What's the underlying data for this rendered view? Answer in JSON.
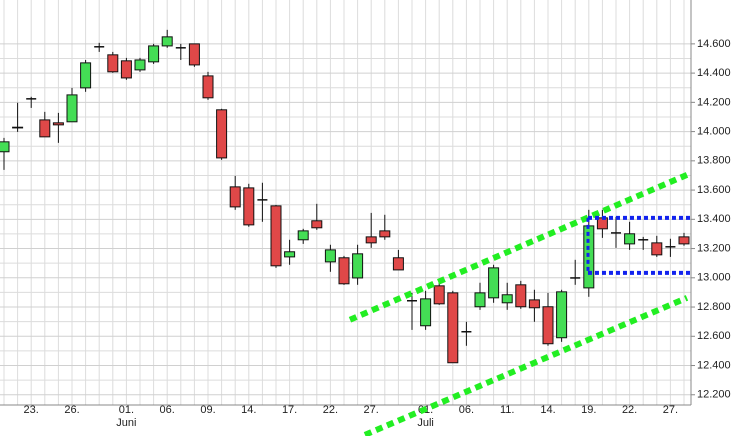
{
  "chart_data": {
    "type": "candlestick",
    "categories": [
      null,
      null,
      "23.",
      null,
      null,
      "26.",
      null,
      null,
      null,
      "01.",
      null,
      null,
      "06.",
      null,
      null,
      "09.",
      null,
      null,
      "14.",
      null,
      null,
      "17.",
      null,
      null,
      "22.",
      null,
      null,
      "27.",
      null,
      null,
      null,
      "01.",
      null,
      null,
      "06.",
      null,
      null,
      "11.",
      null,
      null,
      "14.",
      null,
      null,
      "19.",
      null,
      null,
      "22.",
      null,
      null,
      "27.",
      null
    ],
    "month_labels": [
      {
        "index": 9,
        "label": "Juni"
      },
      {
        "index": 31,
        "label": "Juli"
      }
    ],
    "open": [
      13862,
      14025,
      14224,
      14080,
      14060,
      14067,
      14299,
      14580,
      14525,
      14484,
      14422,
      14477,
      14586,
      14573,
      14600,
      14381,
      14149,
      13622,
      13615,
      13533,
      13492,
      13143,
      13260,
      13390,
      13109,
      13137,
      12999,
      13280,
      13321,
      13137,
      12843,
      12672,
      12945,
      12897,
      12631,
      12802,
      12863,
      12829,
      12952,
      12849,
      12802,
      12590,
      12999,
      12931,
      13410,
      13307,
      13232,
      13260,
      13239,
      13212,
      13280
    ],
    "high": [
      13957,
      14197,
      14238,
      14135,
      14128,
      14299,
      14490,
      14607,
      14545,
      14504,
      14504,
      14600,
      14696,
      14600,
      14600,
      14408,
      14156,
      13697,
      13643,
      13650,
      13499,
      13260,
      13335,
      13506,
      13226,
      13150,
      13226,
      13444,
      13431,
      13191,
      12897,
      12911,
      12973,
      12911,
      12699,
      12966,
      13089,
      12966,
      12979,
      12918,
      12897,
      12918,
      13123,
      13465,
      13465,
      13417,
      13383,
      13280,
      13287,
      13267,
      13307
    ],
    "low": [
      13738,
      13998,
      14162,
      13964,
      13923,
      14067,
      14272,
      14545,
      14402,
      14354,
      14408,
      14463,
      14573,
      14490,
      14443,
      14217,
      13807,
      13465,
      13349,
      13383,
      13068,
      13089,
      13232,
      13328,
      13041,
      12952,
      12952,
      13205,
      13260,
      13054,
      12644,
      12644,
      12815,
      12419,
      12535,
      12781,
      12829,
      12781,
      12788,
      12699,
      12535,
      12562,
      12952,
      12870,
      13273,
      13205,
      13191,
      13191,
      13143,
      13143,
      13219
    ],
    "close": [
      13930,
      14030,
      14224,
      13964,
      14046,
      14251,
      14470,
      14580,
      14409,
      14367,
      14490,
      14586,
      14648,
      14573,
      14456,
      14231,
      13820,
      13485,
      13362,
      13533,
      13082,
      13178,
      13321,
      13342,
      13191,
      12959,
      13164,
      13239,
      13280,
      13054,
      12843,
      12856,
      12822,
      12419,
      12631,
      12897,
      13068,
      12884,
      12802,
      12795,
      12549,
      12904,
      12999,
      13355,
      13335,
      13307,
      13301,
      13260,
      13157,
      13212,
      13232
    ],
    "up_color": "#44dd55",
    "down_color": "#e04848",
    "ylim": [
      12130,
      14900
    ],
    "yticks": [
      {
        "value": 12200,
        "label": "12.200"
      },
      {
        "value": 12400,
        "label": "12.400"
      },
      {
        "value": 12600,
        "label": "12.600"
      },
      {
        "value": 12800,
        "label": "12.800"
      },
      {
        "value": 13000,
        "label": "13.000"
      },
      {
        "value": 13200,
        "label": "13.200"
      },
      {
        "value": 13400,
        "label": "13.400"
      },
      {
        "value": 13600,
        "label": "13.600"
      },
      {
        "value": 13800,
        "label": "13.800"
      },
      {
        "value": 14000,
        "label": "14.000"
      },
      {
        "value": 14200,
        "label": "14.200"
      },
      {
        "value": 14400,
        "label": "14.400"
      },
      {
        "value": 14600,
        "label": "14.600"
      }
    ],
    "grid": true,
    "trend_lines": [
      {
        "color": "#22ee22",
        "x": [
          25.44,
          50.22
        ],
        "y": [
          12713,
          13704
        ]
      },
      {
        "color": "#22ee22",
        "x": [
          26.54,
          50.22
        ],
        "y": [
          11926,
          12863
        ]
      }
    ],
    "levels": {
      "color": "#1122ee",
      "x": [
        42.94,
        50.66
      ],
      "y": [
        13410,
        13034
      ]
    }
  }
}
